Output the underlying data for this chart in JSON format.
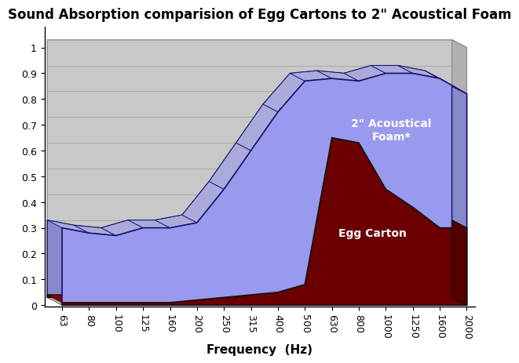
{
  "title": "Sound Absorption comparision of Egg Cartons to 2\" Acoustical Foam",
  "xlabel": "Frequency  (Hz)",
  "xtick_labels": [
    "63",
    "80",
    "100",
    "125",
    "160",
    "200",
    "250",
    "315",
    "400",
    "500",
    "630",
    "800",
    "1000",
    "1250",
    "1600",
    "2000"
  ],
  "ytick_labels": [
    "0",
    "0.1",
    "0.2",
    "0.3",
    "0.4",
    "0.5",
    "0.6",
    "0.7",
    "0.8",
    "0.9",
    "1"
  ],
  "ytick_vals": [
    0,
    0.1,
    0.2,
    0.3,
    0.4,
    0.5,
    0.6,
    0.7,
    0.8,
    0.9,
    1.0
  ],
  "foam_values": [
    0.3,
    0.28,
    0.27,
    0.3,
    0.3,
    0.32,
    0.45,
    0.6,
    0.75,
    0.87,
    0.88,
    0.87,
    0.9,
    0.9,
    0.88,
    0.82
  ],
  "egg_values": [
    0.01,
    0.01,
    0.01,
    0.01,
    0.01,
    0.02,
    0.03,
    0.04,
    0.05,
    0.08,
    0.65,
    0.63,
    0.45,
    0.38,
    0.3,
    0.3
  ],
  "foam_color": "#9999ee",
  "foam_top_color": "#aaaadd",
  "foam_side_color": "#8888cc",
  "foam_edge_color": "#111166",
  "egg_color": "#6b0000",
  "egg_top_color": "#880000",
  "egg_side_color": "#550000",
  "egg_edge_color": "#111111",
  "wall_color": "#c8c8c8",
  "wall_line_color": "#aaaaaa",
  "floor_color": "#b0b0b0",
  "foam_label": "2\" Acoustical\nFoam*",
  "egg_label": "Egg Carton",
  "title_fontsize": 12,
  "label_fontsize": 11,
  "tick_fontsize": 9
}
